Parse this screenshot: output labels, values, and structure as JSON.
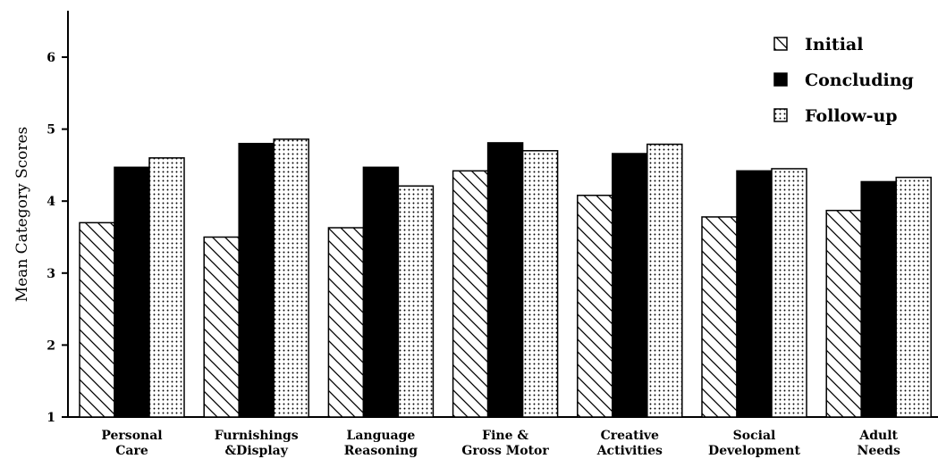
{
  "chart_data": {
    "type": "bar",
    "ylabel": "Mean Category Scores",
    "ylim": [
      1,
      6.5
    ],
    "yticks": [
      1,
      2,
      3,
      4,
      5,
      6
    ],
    "categories": [
      [
        "Personal",
        "Care"
      ],
      [
        "Furnishings",
        "&Display"
      ],
      [
        "Language",
        "Reasoning"
      ],
      [
        "Fine &",
        "Gross Motor"
      ],
      [
        "Creative",
        "Activities"
      ],
      [
        "Social",
        "Development"
      ],
      [
        "Adult",
        "Needs"
      ]
    ],
    "series": [
      {
        "name": "Initial",
        "pattern": "diagonal-hatch",
        "values": [
          3.7,
          3.5,
          3.63,
          4.42,
          4.08,
          3.78,
          3.87
        ]
      },
      {
        "name": "Concluding",
        "pattern": "solid-black",
        "values": [
          4.47,
          4.8,
          4.47,
          4.81,
          4.66,
          4.42,
          4.27
        ]
      },
      {
        "name": "Follow-up",
        "pattern": "dotted",
        "values": [
          4.6,
          4.86,
          4.21,
          4.7,
          4.79,
          4.45,
          4.33
        ]
      }
    ],
    "legend_position": "top-right",
    "grid": false
  }
}
